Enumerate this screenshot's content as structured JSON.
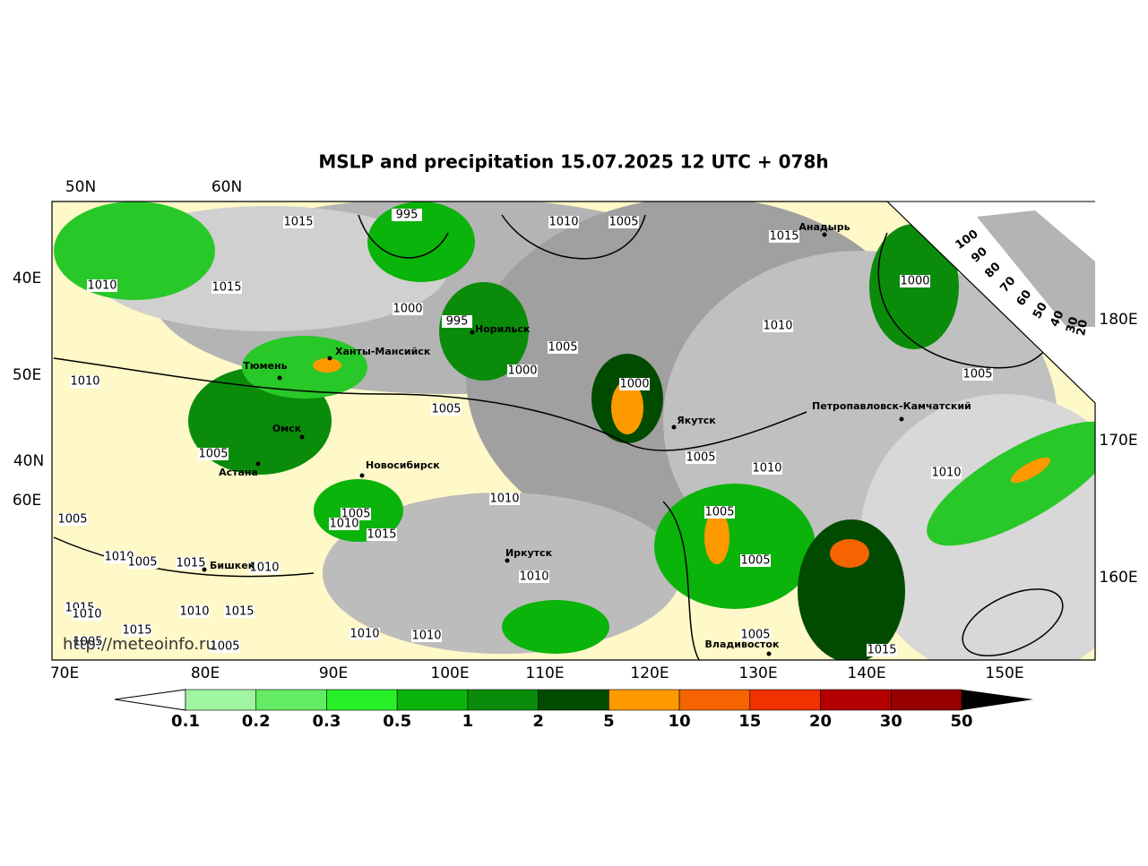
{
  "header": {
    "title": "MSLP and precipitation 15.07.2025 12 UTC + 078h"
  },
  "graticule": {
    "top": [
      "50N",
      "60N"
    ],
    "left": [
      "40E",
      "50E",
      "40N",
      "60E"
    ],
    "right": [
      "180E",
      "170E",
      "160E"
    ],
    "bottom": [
      "70E",
      "80E",
      "90E",
      "100E",
      "110E",
      "120E",
      "130E",
      "140E",
      "150E"
    ]
  },
  "pressure_labels": [
    995,
    1015,
    1010,
    1005,
    1015,
    1010,
    1015,
    1000,
    1000,
    995,
    1005,
    1010,
    1000,
    1010,
    1000,
    1005,
    1005,
    1005,
    1005,
    1010,
    1010,
    1010,
    1005,
    1005,
    1005,
    1010,
    1015,
    1010,
    1005,
    1015,
    1010,
    1005,
    1010,
    1015,
    1010,
    1010,
    1015,
    1015,
    1010,
    1010,
    1005,
    1005,
    1005,
    1015
  ],
  "cities": [
    "Анадырь",
    "Норильск",
    "Ханты-Мансийск",
    "Тюмень",
    "Петропавловск-Камчатский",
    "Якутск",
    "Омск",
    "Новосибирск",
    "Астана",
    "Иркутск",
    "Бишкек",
    "Владивосток"
  ],
  "watermark": "http://meteoinfo.ru",
  "colorbar": {
    "ticks": [
      0.1,
      0.2,
      0.3,
      0.5,
      1,
      2,
      5,
      10,
      15,
      20,
      30,
      50
    ],
    "colors": [
      "#a0f5a0",
      "#64eb64",
      "#28f028",
      "#0ab40a",
      "#0a8c0a",
      "#004b00",
      "#ff9900",
      "#f56400",
      "#f03200",
      "#b40000",
      "#960000"
    ]
  },
  "cloud_legend": {
    "labels": [
      100,
      90,
      80,
      70,
      60,
      50,
      40,
      30,
      20
    ]
  }
}
